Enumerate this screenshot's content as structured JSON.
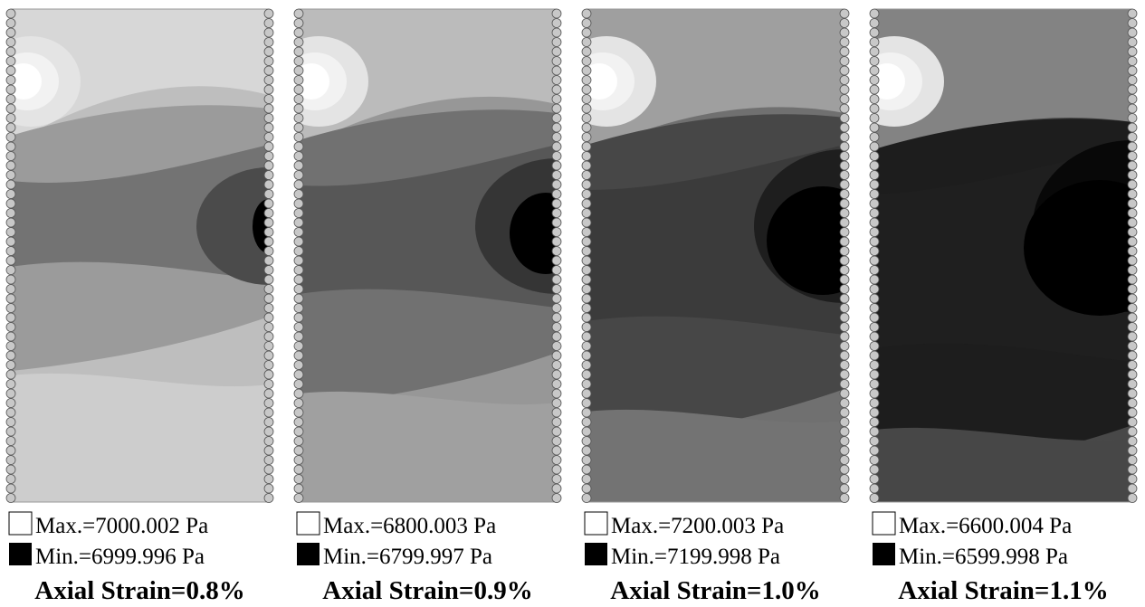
{
  "panels": [
    {
      "max_label": "Max.=7000.002 Pa",
      "min_label": "Min.=6999.996 Pa",
      "caption": "Axial Strain=0.8%"
    },
    {
      "max_label": "Max.=6800.003 Pa",
      "min_label": "Min.=6799.997 Pa",
      "caption": "Axial Strain=0.9%"
    },
    {
      "max_label": "Max.=7200.003 Pa",
      "min_label": "Min.=7199.998 Pa",
      "caption": "Axial Strain=1.0%"
    },
    {
      "max_label": "Max.=6600.004 Pa",
      "min_label": "Min.=6599.998 Pa",
      "caption": "Axial Strain=1.1%"
    }
  ]
}
